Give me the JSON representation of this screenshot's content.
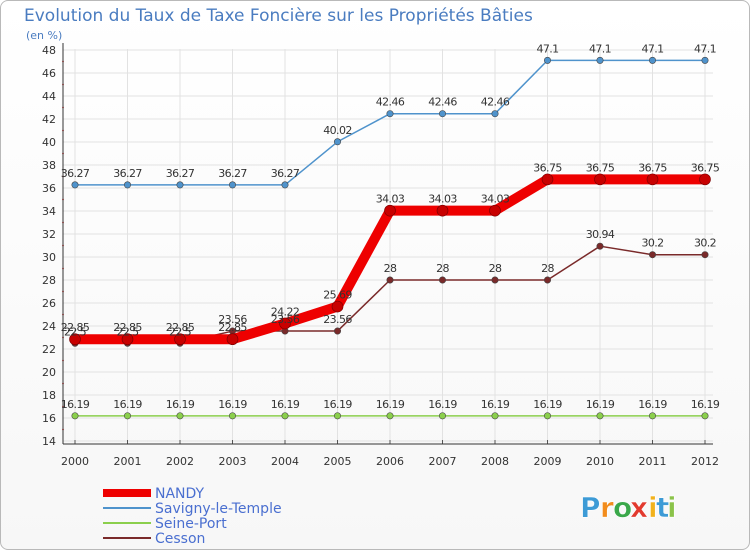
{
  "chart_data": {
    "type": "line",
    "title": "Evolution du Taux de Taxe Foncière sur les Propriétés Bâties",
    "subtitle": "(en %)",
    "xlabel": "",
    "ylabel": "",
    "ylim": [
      14,
      48
    ],
    "yticks": [
      14,
      16,
      18,
      20,
      22,
      24,
      26,
      28,
      30,
      32,
      34,
      36,
      38,
      40,
      42,
      44,
      46,
      48
    ],
    "categories": [
      "2000",
      "2001",
      "2002",
      "2003",
      "2004",
      "2005",
      "2006",
      "2007",
      "2008",
      "2009",
      "2010",
      "2011",
      "2012"
    ],
    "series": [
      {
        "name": "NANDY",
        "color": "#ee0000",
        "values": [
          22.85,
          22.85,
          22.85,
          22.85,
          24.22,
          25.69,
          34.03,
          34.03,
          34.03,
          36.75,
          36.75,
          36.75,
          36.75
        ],
        "labels": [
          "22.85",
          "22.85",
          "22.85",
          "22.85",
          "24.22",
          "25.69",
          "34.03",
          "34.03",
          "34.03",
          "36.75",
          "36.75",
          "36.75",
          "36.75"
        ]
      },
      {
        "name": "Savigny-le-Temple",
        "color": "#4f93cc",
        "values": [
          36.27,
          36.27,
          36.27,
          36.27,
          36.27,
          40.02,
          42.46,
          42.46,
          42.46,
          47.1,
          47.1,
          47.1,
          47.1
        ],
        "labels": [
          "36.27",
          "36.27",
          "36.27",
          "36.27",
          "36.27",
          "40.02",
          "42.46",
          "42.46",
          "42.46",
          "47.1",
          "47.1",
          "47.1",
          "47.1"
        ]
      },
      {
        "name": "Seine-Port",
        "color": "#8bcf4c",
        "values": [
          16.19,
          16.19,
          16.19,
          16.19,
          16.19,
          16.19,
          16.19,
          16.19,
          16.19,
          16.19,
          16.19,
          16.19,
          16.19
        ],
        "labels": [
          "16.19",
          "16.19",
          "16.19",
          "16.19",
          "16.19",
          "16.19",
          "16.19",
          "16.19",
          "16.19",
          "16.19",
          "16.19",
          "16.19",
          "16.19"
        ]
      },
      {
        "name": "Cesson",
        "color": "#7a2a2a",
        "values": [
          22.5,
          22.5,
          22.5,
          23.56,
          23.56,
          23.56,
          28,
          28,
          28,
          28,
          30.94,
          30.2,
          30.2
        ],
        "labels": [
          "22.5",
          "22.5",
          "22.5",
          "23.56",
          "23.56",
          "23.56",
          "28",
          "28",
          "28",
          "28",
          "30.94",
          "30.2",
          "30.2"
        ]
      }
    ],
    "legend": "bottom-left"
  },
  "logo": {
    "text": "Proxiti",
    "letters": [
      "P",
      "r",
      "o",
      "x",
      "i",
      "t",
      "i"
    ],
    "colors": [
      "#3d9bd6",
      "#f28c1c",
      "#3aa84a",
      "#e23a2e",
      "#f2b21c",
      "#3d9bd6",
      "#8bc34a"
    ]
  }
}
